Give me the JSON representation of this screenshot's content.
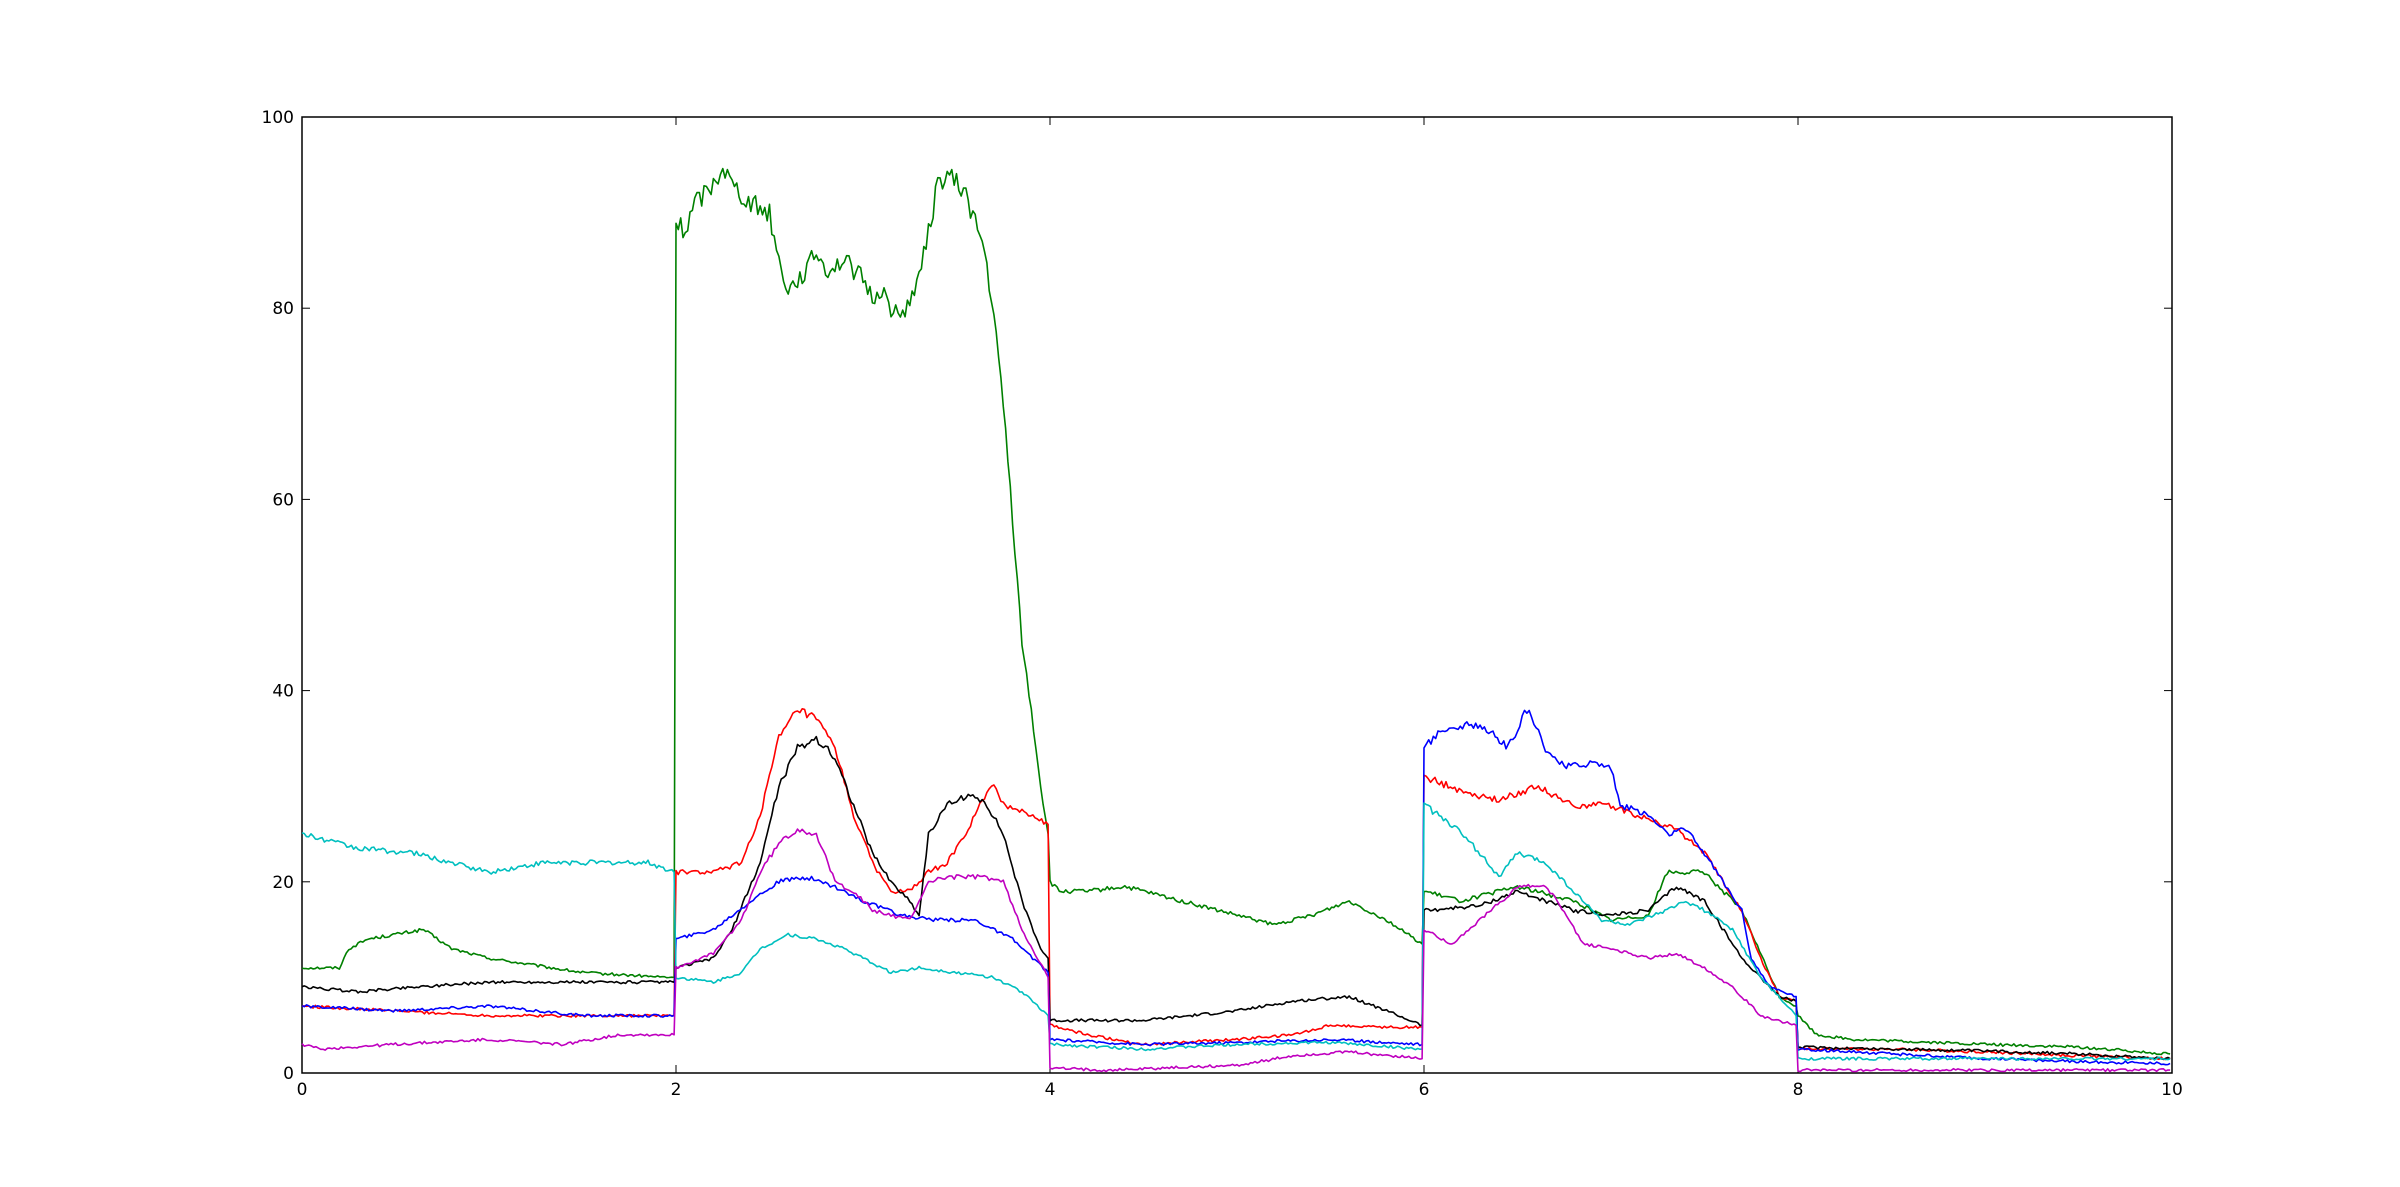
{
  "chart_data": {
    "type": "line",
    "title": "",
    "xlabel": "",
    "ylabel": "",
    "xlim": [
      0,
      10
    ],
    "ylim": [
      0,
      100
    ],
    "grid": false,
    "legend": "none",
    "xticks": [
      "0",
      "2",
      "4",
      "6",
      "8",
      "10"
    ],
    "yticks": [
      "0",
      "20",
      "40",
      "60",
      "80",
      "100"
    ],
    "series": [
      {
        "color": "#008000",
        "points": [
          [
            0,
            11
          ],
          [
            0.2,
            11
          ],
          [
            0.25,
            13
          ],
          [
            0.35,
            14
          ],
          [
            0.5,
            14.5
          ],
          [
            0.65,
            15
          ],
          [
            0.8,
            13
          ],
          [
            1.0,
            12
          ],
          [
            1.5,
            10.5
          ],
          [
            1.95,
            10
          ],
          [
            1.99,
            10
          ],
          [
            2.0,
            89
          ],
          [
            2.05,
            88
          ],
          [
            2.1,
            91
          ],
          [
            2.15,
            92
          ],
          [
            2.2,
            93
          ],
          [
            2.25,
            95
          ],
          [
            2.3,
            93
          ],
          [
            2.4,
            91
          ],
          [
            2.5,
            90
          ],
          [
            2.55,
            85
          ],
          [
            2.6,
            82
          ],
          [
            2.7,
            84
          ],
          [
            2.75,
            86
          ],
          [
            2.8,
            84
          ],
          [
            2.9,
            85
          ],
          [
            3.0,
            83
          ],
          [
            3.05,
            81
          ],
          [
            3.1,
            82
          ],
          [
            3.15,
            80
          ],
          [
            3.2,
            79
          ],
          [
            3.25,
            81
          ],
          [
            3.3,
            83
          ],
          [
            3.35,
            88
          ],
          [
            3.4,
            93
          ],
          [
            3.45,
            94
          ],
          [
            3.5,
            93
          ],
          [
            3.55,
            92
          ],
          [
            3.6,
            89
          ],
          [
            3.65,
            86
          ],
          [
            3.7,
            79
          ],
          [
            3.75,
            70
          ],
          [
            3.8,
            58
          ],
          [
            3.85,
            45
          ],
          [
            3.9,
            38
          ],
          [
            3.95,
            30
          ],
          [
            3.99,
            25
          ],
          [
            4.0,
            20
          ],
          [
            4.05,
            19
          ],
          [
            4.2,
            19
          ],
          [
            4.4,
            19.5
          ],
          [
            4.6,
            18.5
          ],
          [
            4.8,
            17.5
          ],
          [
            5.0,
            16.5
          ],
          [
            5.2,
            15.5
          ],
          [
            5.4,
            16.5
          ],
          [
            5.6,
            18
          ],
          [
            5.8,
            16
          ],
          [
            5.99,
            13.5
          ],
          [
            6.0,
            19
          ],
          [
            6.2,
            18
          ],
          [
            6.5,
            19.5
          ],
          [
            6.8,
            18
          ],
          [
            7.0,
            16
          ],
          [
            7.2,
            16.5
          ],
          [
            7.3,
            21
          ],
          [
            7.5,
            21
          ],
          [
            7.7,
            17
          ],
          [
            7.9,
            8
          ],
          [
            7.99,
            7
          ],
          [
            8.0,
            6
          ],
          [
            8.1,
            4
          ],
          [
            8.3,
            3.5
          ],
          [
            9.0,
            3
          ],
          [
            9.5,
            2.7
          ],
          [
            9.99,
            2
          ]
        ]
      },
      {
        "color": "#ff0000",
        "points": [
          [
            0,
            7
          ],
          [
            0.5,
            6.5
          ],
          [
            1.0,
            6
          ],
          [
            1.5,
            6
          ],
          [
            1.99,
            6
          ],
          [
            2.0,
            21
          ],
          [
            2.2,
            21
          ],
          [
            2.35,
            22
          ],
          [
            2.45,
            27
          ],
          [
            2.55,
            35
          ],
          [
            2.65,
            38
          ],
          [
            2.75,
            37
          ],
          [
            2.85,
            34
          ],
          [
            2.95,
            27
          ],
          [
            3.05,
            22
          ],
          [
            3.15,
            19
          ],
          [
            3.25,
            19
          ],
          [
            3.35,
            21
          ],
          [
            3.45,
            22
          ],
          [
            3.55,
            25
          ],
          [
            3.65,
            29
          ],
          [
            3.7,
            30
          ],
          [
            3.75,
            28
          ],
          [
            3.85,
            27.5
          ],
          [
            3.99,
            26
          ],
          [
            4.0,
            5
          ],
          [
            4.2,
            4
          ],
          [
            4.5,
            3
          ],
          [
            5.0,
            3.5
          ],
          [
            5.3,
            4
          ],
          [
            5.5,
            5
          ],
          [
            5.8,
            4.8
          ],
          [
            5.99,
            4.8
          ],
          [
            6.0,
            31
          ],
          [
            6.2,
            29.5
          ],
          [
            6.4,
            28.5
          ],
          [
            6.6,
            30
          ],
          [
            6.8,
            28
          ],
          [
            7.0,
            28
          ],
          [
            7.2,
            26.5
          ],
          [
            7.35,
            25.5
          ],
          [
            7.5,
            23
          ],
          [
            7.7,
            17
          ],
          [
            7.8,
            12
          ],
          [
            7.9,
            8
          ],
          [
            7.99,
            7.5
          ],
          [
            8.0,
            2.5
          ],
          [
            8.5,
            2.5
          ],
          [
            9.0,
            2.2
          ],
          [
            9.5,
            1.8
          ],
          [
            9.99,
            1.5
          ]
        ]
      },
      {
        "color": "#000000",
        "points": [
          [
            0,
            9
          ],
          [
            0.3,
            8.5
          ],
          [
            0.6,
            9
          ],
          [
            1.0,
            9.5
          ],
          [
            1.5,
            9.5
          ],
          [
            1.9,
            9.5
          ],
          [
            1.99,
            9.5
          ],
          [
            2.0,
            11
          ],
          [
            2.2,
            12
          ],
          [
            2.3,
            15
          ],
          [
            2.45,
            22
          ],
          [
            2.55,
            30
          ],
          [
            2.65,
            34
          ],
          [
            2.75,
            35
          ],
          [
            2.85,
            33
          ],
          [
            2.95,
            28
          ],
          [
            3.05,
            23
          ],
          [
            3.15,
            20
          ],
          [
            3.25,
            18
          ],
          [
            3.3,
            16.5
          ],
          [
            3.35,
            25
          ],
          [
            3.45,
            28
          ],
          [
            3.55,
            29
          ],
          [
            3.65,
            28.5
          ],
          [
            3.75,
            25
          ],
          [
            3.85,
            18
          ],
          [
            3.95,
            13
          ],
          [
            3.99,
            12
          ],
          [
            4.0,
            5.5
          ],
          [
            4.5,
            5.5
          ],
          [
            5.0,
            6.5
          ],
          [
            5.3,
            7.5
          ],
          [
            5.6,
            8
          ],
          [
            5.8,
            6.5
          ],
          [
            5.99,
            5
          ],
          [
            6.0,
            17
          ],
          [
            6.3,
            17.5
          ],
          [
            6.5,
            19
          ],
          [
            6.8,
            17
          ],
          [
            7.0,
            16.5
          ],
          [
            7.2,
            17
          ],
          [
            7.35,
            19.5
          ],
          [
            7.5,
            18
          ],
          [
            7.7,
            12
          ],
          [
            7.9,
            8
          ],
          [
            7.99,
            7.5
          ],
          [
            8.0,
            2.7
          ],
          [
            8.5,
            2.5
          ],
          [
            9.0,
            2.3
          ],
          [
            9.5,
            2.0
          ],
          [
            9.99,
            1.5
          ]
        ]
      },
      {
        "color": "#0000ff",
        "points": [
          [
            0,
            7
          ],
          [
            0.5,
            6.5
          ],
          [
            1.0,
            7
          ],
          [
            1.5,
            6
          ],
          [
            1.99,
            6
          ],
          [
            2.0,
            14
          ],
          [
            2.2,
            15
          ],
          [
            2.4,
            18
          ],
          [
            2.55,
            20
          ],
          [
            2.7,
            20.5
          ],
          [
            2.85,
            19.5
          ],
          [
            3.0,
            18
          ],
          [
            3.2,
            16.5
          ],
          [
            3.4,
            16
          ],
          [
            3.6,
            16
          ],
          [
            3.8,
            14
          ],
          [
            3.99,
            10.5
          ],
          [
            4.0,
            3.5
          ],
          [
            4.5,
            3
          ],
          [
            5.0,
            3.2
          ],
          [
            5.5,
            3.5
          ],
          [
            5.99,
            3
          ],
          [
            6.0,
            34
          ],
          [
            6.1,
            36
          ],
          [
            6.3,
            36.5
          ],
          [
            6.45,
            34
          ],
          [
            6.55,
            38
          ],
          [
            6.65,
            34
          ],
          [
            6.75,
            32
          ],
          [
            6.9,
            32.5
          ],
          [
            7.0,
            32
          ],
          [
            7.05,
            28
          ],
          [
            7.2,
            27
          ],
          [
            7.3,
            25
          ],
          [
            7.4,
            25.5
          ],
          [
            7.5,
            23
          ],
          [
            7.6,
            20
          ],
          [
            7.7,
            17
          ],
          [
            7.75,
            12
          ],
          [
            7.85,
            9
          ],
          [
            7.99,
            8
          ],
          [
            8.0,
            2.5
          ],
          [
            8.5,
            2.0
          ],
          [
            9.0,
            1.5
          ],
          [
            9.5,
            1.2
          ],
          [
            9.99,
            1
          ]
        ]
      },
      {
        "color": "#00bfbf",
        "points": [
          [
            0,
            25
          ],
          [
            0.3,
            23.5
          ],
          [
            0.6,
            23
          ],
          [
            1.0,
            21
          ],
          [
            1.3,
            22
          ],
          [
            1.6,
            22
          ],
          [
            1.85,
            22
          ],
          [
            1.99,
            21
          ],
          [
            2.0,
            10
          ],
          [
            2.2,
            9.5
          ],
          [
            2.35,
            10.5
          ],
          [
            2.45,
            13
          ],
          [
            2.6,
            14.5
          ],
          [
            2.75,
            14
          ],
          [
            2.9,
            13
          ],
          [
            3.0,
            12
          ],
          [
            3.15,
            10.5
          ],
          [
            3.3,
            11
          ],
          [
            3.5,
            10.5
          ],
          [
            3.7,
            10
          ],
          [
            3.85,
            8.5
          ],
          [
            3.99,
            6
          ],
          [
            4.0,
            3
          ],
          [
            4.5,
            2.5
          ],
          [
            5.0,
            3
          ],
          [
            5.5,
            3.2
          ],
          [
            5.99,
            2.5
          ],
          [
            6.0,
            28
          ],
          [
            6.15,
            26
          ],
          [
            6.3,
            23
          ],
          [
            6.4,
            20.5
          ],
          [
            6.5,
            23
          ],
          [
            6.65,
            22
          ],
          [
            6.8,
            19
          ],
          [
            6.95,
            16
          ],
          [
            7.1,
            15.5
          ],
          [
            7.3,
            17
          ],
          [
            7.4,
            18
          ],
          [
            7.5,
            17
          ],
          [
            7.65,
            15
          ],
          [
            7.8,
            10
          ],
          [
            7.99,
            6
          ],
          [
            8.0,
            1.5
          ],
          [
            8.5,
            1.5
          ],
          [
            9.0,
            1.5
          ],
          [
            9.5,
            1.5
          ],
          [
            9.99,
            1.5
          ]
        ]
      },
      {
        "color": "#bf00bf",
        "points": [
          [
            0,
            3
          ],
          [
            0.1,
            2.5
          ],
          [
            0.5,
            3
          ],
          [
            1.0,
            3.5
          ],
          [
            1.4,
            3
          ],
          [
            1.7,
            4
          ],
          [
            1.99,
            4
          ],
          [
            2.0,
            11
          ],
          [
            2.2,
            12.5
          ],
          [
            2.35,
            16
          ],
          [
            2.45,
            21
          ],
          [
            2.55,
            24
          ],
          [
            2.65,
            25.5
          ],
          [
            2.75,
            25
          ],
          [
            2.85,
            20
          ],
          [
            2.95,
            19
          ],
          [
            3.05,
            17
          ],
          [
            3.15,
            16.5
          ],
          [
            3.25,
            16
          ],
          [
            3.35,
            20
          ],
          [
            3.45,
            20.5
          ],
          [
            3.55,
            20.5
          ],
          [
            3.65,
            20.5
          ],
          [
            3.75,
            20
          ],
          [
            3.85,
            15
          ],
          [
            3.99,
            10
          ],
          [
            4.0,
            0.5
          ],
          [
            4.3,
            0.3
          ],
          [
            5.0,
            0.8
          ],
          [
            5.3,
            1.8
          ],
          [
            5.6,
            2.2
          ],
          [
            5.99,
            1.5
          ],
          [
            6.0,
            15
          ],
          [
            6.15,
            13.5
          ],
          [
            6.3,
            16
          ],
          [
            6.5,
            19.5
          ],
          [
            6.65,
            19.5
          ],
          [
            6.75,
            17
          ],
          [
            6.85,
            13.5
          ],
          [
            7.0,
            13
          ],
          [
            7.2,
            12
          ],
          [
            7.35,
            12.5
          ],
          [
            7.5,
            11
          ],
          [
            7.65,
            9
          ],
          [
            7.8,
            6
          ],
          [
            7.99,
            5
          ],
          [
            8.0,
            0.3
          ],
          [
            9.0,
            0.3
          ],
          [
            9.99,
            0.3
          ]
        ]
      }
    ]
  }
}
